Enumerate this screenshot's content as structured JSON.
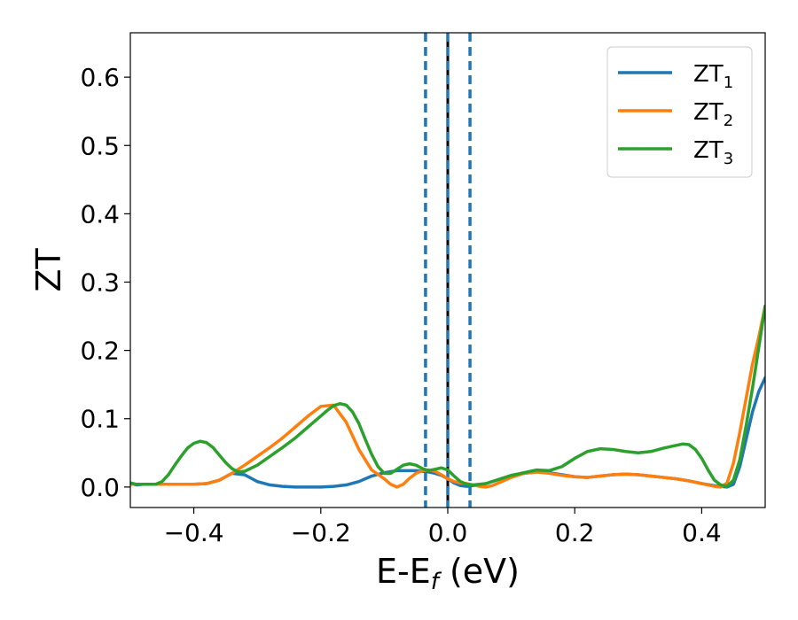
{
  "chart_data": {
    "type": "line",
    "xlabel": {
      "main": "E-E",
      "sub": "f",
      "unit": " (eV)"
    },
    "ylabel": "ZT",
    "xlim": [
      -0.5,
      0.5
    ],
    "ylim": [
      -0.03,
      0.665
    ],
    "x_ticks": [
      -0.4,
      -0.2,
      0.0,
      0.2,
      0.4
    ],
    "x_tick_labels": [
      "−0.4",
      "−0.2",
      "0.0",
      "0.2",
      "0.4"
    ],
    "y_ticks": [
      0.0,
      0.1,
      0.2,
      0.3,
      0.4,
      0.5,
      0.6
    ],
    "y_tick_labels": [
      "0.0",
      "0.1",
      "0.2",
      "0.3",
      "0.4",
      "0.5",
      "0.6"
    ],
    "grid": false,
    "legend_position": "top-right",
    "vertical_lines": [
      {
        "x": 0.0,
        "style": "solid",
        "color": "#000000"
      },
      {
        "x": 0.0,
        "style": "dashed",
        "color": "#1f77b4"
      },
      {
        "x": -0.035,
        "style": "dashed",
        "color": "#1f77b4"
      },
      {
        "x": 0.035,
        "style": "dashed",
        "color": "#1f77b4"
      }
    ],
    "series": [
      {
        "name": "ZT",
        "sub": "1",
        "color": "#1f77b4",
        "x": [
          -0.5,
          -0.49,
          -0.48,
          -0.47,
          -0.46,
          -0.44,
          -0.42,
          -0.4,
          -0.38,
          -0.36,
          -0.34,
          -0.32,
          -0.3,
          -0.28,
          -0.26,
          -0.24,
          -0.22,
          -0.2,
          -0.18,
          -0.16,
          -0.14,
          -0.12,
          -0.1,
          -0.08,
          -0.06,
          -0.05,
          -0.04,
          -0.03,
          -0.02,
          -0.01,
          0.0,
          0.01,
          0.02,
          0.03,
          0.04,
          0.06,
          0.08,
          0.1,
          0.12,
          0.14,
          0.16,
          0.18,
          0.2,
          0.22,
          0.24,
          0.26,
          0.28,
          0.3,
          0.32,
          0.34,
          0.36,
          0.38,
          0.4,
          0.42,
          0.43,
          0.44,
          0.45,
          0.46,
          0.47,
          0.48,
          0.49,
          0.5
        ],
        "y": [
          0.005,
          0.003,
          0.004,
          0.004,
          0.004,
          0.004,
          0.004,
          0.004,
          0.005,
          0.01,
          0.02,
          0.018,
          0.008,
          0.003,
          0.001,
          0.0,
          0.0,
          0.0,
          0.001,
          0.003,
          0.008,
          0.016,
          0.021,
          0.024,
          0.024,
          0.024,
          0.023,
          0.022,
          0.02,
          0.017,
          0.012,
          0.006,
          0.002,
          0.001,
          0.002,
          0.005,
          0.011,
          0.017,
          0.02,
          0.022,
          0.021,
          0.018,
          0.015,
          0.014,
          0.016,
          0.018,
          0.019,
          0.018,
          0.016,
          0.014,
          0.012,
          0.009,
          0.005,
          0.002,
          0.001,
          0.0,
          0.004,
          0.03,
          0.07,
          0.11,
          0.14,
          0.16
        ]
      },
      {
        "name": "ZT",
        "sub": "2",
        "color": "#ff7f0e",
        "x": [
          -0.5,
          -0.48,
          -0.46,
          -0.44,
          -0.42,
          -0.4,
          -0.38,
          -0.36,
          -0.34,
          -0.32,
          -0.3,
          -0.28,
          -0.26,
          -0.24,
          -0.22,
          -0.2,
          -0.18,
          -0.16,
          -0.14,
          -0.12,
          -0.1,
          -0.09,
          -0.08,
          -0.07,
          -0.06,
          -0.05,
          -0.04,
          -0.03,
          -0.02,
          -0.01,
          0.0,
          0.01,
          0.02,
          0.03,
          0.04,
          0.05,
          0.06,
          0.07,
          0.08,
          0.1,
          0.12,
          0.14,
          0.16,
          0.18,
          0.2,
          0.22,
          0.24,
          0.26,
          0.28,
          0.3,
          0.32,
          0.34,
          0.36,
          0.38,
          0.4,
          0.42,
          0.43,
          0.44,
          0.45,
          0.46,
          0.47,
          0.48,
          0.49,
          0.5
        ],
        "y": [
          0.004,
          0.004,
          0.004,
          0.004,
          0.004,
          0.004,
          0.005,
          0.01,
          0.02,
          0.032,
          0.045,
          0.058,
          0.072,
          0.088,
          0.104,
          0.118,
          0.12,
          0.095,
          0.055,
          0.025,
          0.012,
          0.004,
          0.0,
          0.004,
          0.013,
          0.02,
          0.024,
          0.025,
          0.023,
          0.018,
          0.012,
          0.008,
          0.006,
          0.005,
          0.003,
          0.001,
          0.0,
          0.002,
          0.006,
          0.014,
          0.02,
          0.022,
          0.02,
          0.017,
          0.015,
          0.014,
          0.016,
          0.018,
          0.019,
          0.018,
          0.016,
          0.014,
          0.012,
          0.009,
          0.005,
          0.001,
          0.0,
          0.006,
          0.035,
          0.08,
          0.13,
          0.18,
          0.22,
          0.265
        ]
      },
      {
        "name": "ZT",
        "sub": "3",
        "color": "#2ca02c",
        "x": [
          -0.5,
          -0.49,
          -0.48,
          -0.47,
          -0.46,
          -0.45,
          -0.44,
          -0.43,
          -0.42,
          -0.41,
          -0.4,
          -0.39,
          -0.38,
          -0.37,
          -0.36,
          -0.35,
          -0.34,
          -0.33,
          -0.32,
          -0.3,
          -0.28,
          -0.26,
          -0.24,
          -0.22,
          -0.2,
          -0.19,
          -0.18,
          -0.17,
          -0.16,
          -0.15,
          -0.14,
          -0.13,
          -0.12,
          -0.11,
          -0.1,
          -0.09,
          -0.08,
          -0.07,
          -0.06,
          -0.05,
          -0.04,
          -0.03,
          -0.02,
          -0.01,
          0.0,
          0.01,
          0.02,
          0.03,
          0.04,
          0.06,
          0.08,
          0.1,
          0.12,
          0.14,
          0.16,
          0.18,
          0.2,
          0.22,
          0.24,
          0.26,
          0.28,
          0.3,
          0.32,
          0.34,
          0.36,
          0.37,
          0.38,
          0.39,
          0.4,
          0.41,
          0.42,
          0.43,
          0.44,
          0.45,
          0.46,
          0.47,
          0.48,
          0.49,
          0.5
        ],
        "y": [
          0.006,
          0.004,
          0.004,
          0.004,
          0.004,
          0.008,
          0.018,
          0.032,
          0.045,
          0.057,
          0.064,
          0.067,
          0.065,
          0.058,
          0.047,
          0.036,
          0.027,
          0.022,
          0.023,
          0.032,
          0.045,
          0.058,
          0.072,
          0.088,
          0.104,
          0.112,
          0.119,
          0.122,
          0.12,
          0.11,
          0.093,
          0.07,
          0.048,
          0.03,
          0.02,
          0.02,
          0.026,
          0.032,
          0.034,
          0.032,
          0.027,
          0.024,
          0.026,
          0.028,
          0.025,
          0.016,
          0.008,
          0.004,
          0.003,
          0.005,
          0.011,
          0.017,
          0.021,
          0.025,
          0.024,
          0.03,
          0.042,
          0.052,
          0.056,
          0.055,
          0.052,
          0.05,
          0.052,
          0.057,
          0.061,
          0.063,
          0.062,
          0.055,
          0.042,
          0.025,
          0.01,
          0.003,
          0.001,
          0.01,
          0.04,
          0.09,
          0.145,
          0.205,
          0.265
        ]
      }
    ]
  }
}
